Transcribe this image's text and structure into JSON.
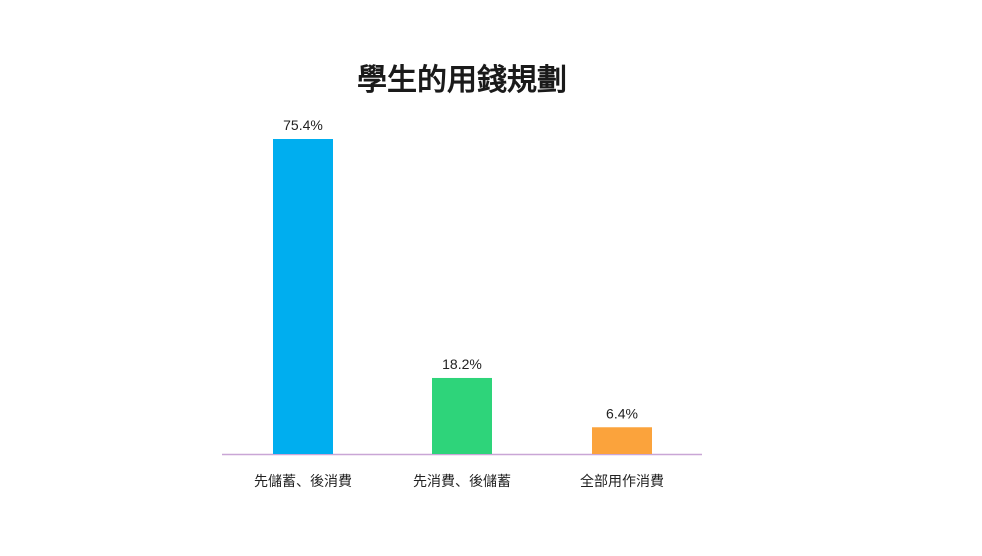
{
  "chart_data": {
    "type": "bar",
    "title": "學生的用錢規劃",
    "categories": [
      "先儲蓄、後消費",
      "先消費、後儲蓄",
      "全部用作消費"
    ],
    "values": [
      75.4,
      18.2,
      6.4
    ],
    "value_labels": [
      "75.4%",
      "18.2%",
      "6.4%"
    ],
    "colors": [
      "#00AEEF",
      "#2ED47A",
      "#FBA33C"
    ],
    "axis_color": "#C9A6D6",
    "ylim": [
      0,
      75.4
    ],
    "grid": false,
    "legend": "none"
  }
}
